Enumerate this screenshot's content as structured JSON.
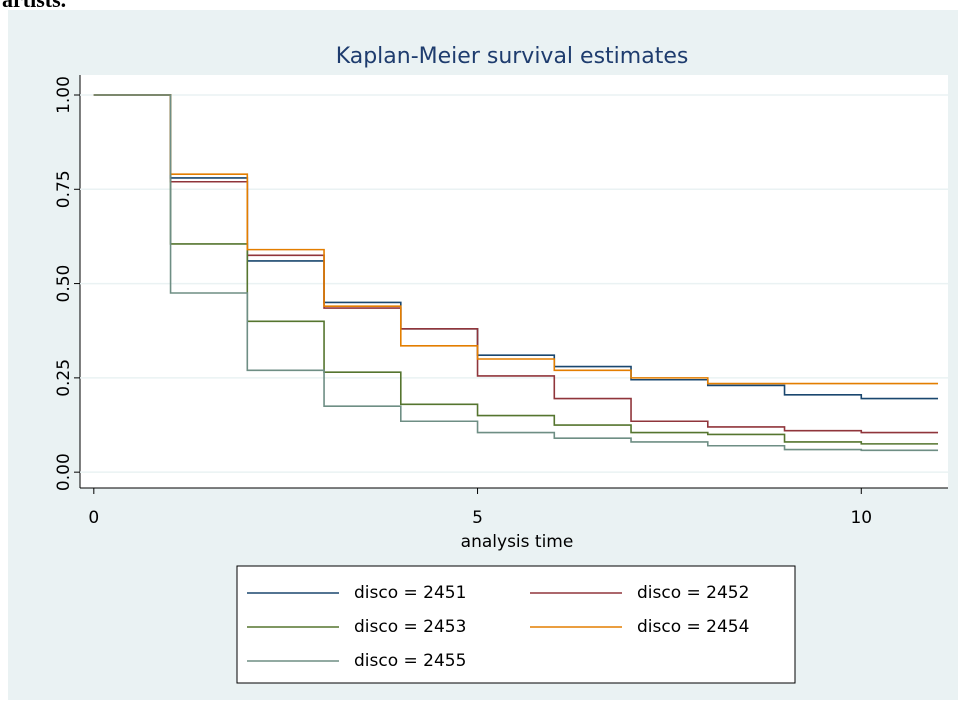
{
  "caption": "artists.",
  "chart_data": {
    "type": "step",
    "title": "Kaplan-Meier survival estimates",
    "x_label": "analysis time",
    "x": [
      0,
      1,
      2,
      3,
      4,
      5,
      6,
      7,
      8,
      9,
      10,
      11
    ],
    "series": [
      {
        "name": "disco = 2451",
        "color": "#1a476f",
        "values": [
          1,
          0.78,
          0.56,
          0.45,
          0.38,
          0.31,
          0.28,
          0.245,
          0.23,
          0.205,
          0.195,
          0.195
        ]
      },
      {
        "name": "disco = 2452",
        "color": "#90353b",
        "values": [
          1,
          0.77,
          0.575,
          0.435,
          0.38,
          0.255,
          0.195,
          0.135,
          0.12,
          0.11,
          0.105,
          0.105
        ]
      },
      {
        "name": "disco = 2453",
        "color": "#55752f",
        "values": [
          1,
          0.605,
          0.4,
          0.265,
          0.18,
          0.15,
          0.125,
          0.105,
          0.1,
          0.08,
          0.075,
          0.075
        ]
      },
      {
        "name": "disco = 2454",
        "color": "#e37e00",
        "values": [
          1,
          0.79,
          0.59,
          0.44,
          0.335,
          0.3,
          0.27,
          0.25,
          0.235,
          0.235,
          0.235,
          0.235
        ]
      },
      {
        "name": "disco = 2455",
        "color": "#6e8e84",
        "values": [
          1,
          0.475,
          0.27,
          0.175,
          0.135,
          0.105,
          0.09,
          0.08,
          0.07,
          0.06,
          0.058,
          0.058
        ]
      }
    ],
    "xlim": [
      -0.18,
      11.13
    ],
    "ylim": [
      -0.042,
      1.053
    ],
    "xticks": [
      0,
      5,
      10
    ],
    "yticks": [
      {
        "value": 0,
        "label": "0.00"
      },
      {
        "value": 0.25,
        "label": "0.25"
      },
      {
        "value": 0.5,
        "label": "0.50"
      },
      {
        "value": 0.75,
        "label": "0.75"
      },
      {
        "value": 1,
        "label": "1.00"
      }
    ],
    "grid": true
  }
}
